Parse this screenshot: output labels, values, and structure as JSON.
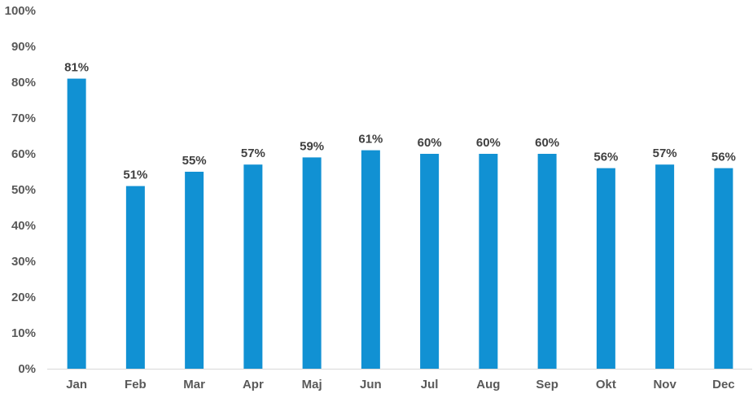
{
  "chart_data": {
    "type": "bar",
    "categories": [
      "Jan",
      "Feb",
      "Mar",
      "Apr",
      "Maj",
      "Jun",
      "Jul",
      "Aug",
      "Sep",
      "Okt",
      "Nov",
      "Dec"
    ],
    "values": [
      81,
      51,
      55,
      57,
      59,
      61,
      60,
      60,
      60,
      56,
      57,
      56
    ],
    "data_labels": [
      "81%",
      "51%",
      "55%",
      "57%",
      "59%",
      "61%",
      "60%",
      "60%",
      "60%",
      "56%",
      "57%",
      "56%"
    ],
    "y_ticks": [
      0,
      10,
      20,
      30,
      40,
      50,
      60,
      70,
      80,
      90,
      100
    ],
    "y_tick_labels": [
      "0%",
      "10%",
      "20%",
      "30%",
      "40%",
      "50%",
      "60%",
      "70%",
      "80%",
      "90%",
      "100%"
    ],
    "ylim": [
      0,
      100
    ],
    "grid": false,
    "legend": "none",
    "bar_color": "#1191D3",
    "axis_color": "#D9D9D9"
  }
}
